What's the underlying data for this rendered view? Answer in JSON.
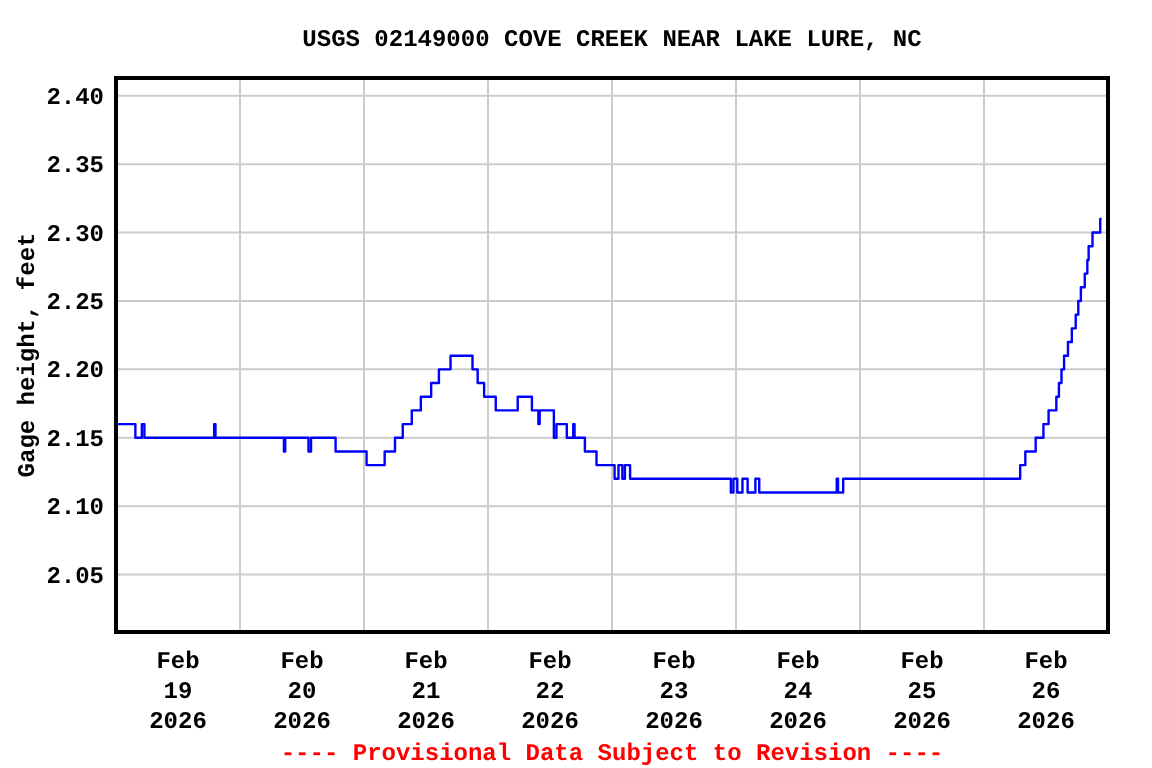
{
  "chart_data": {
    "type": "step",
    "title": "USGS 02149000 COVE CREEK NEAR LAKE LURE, NC",
    "ylabel": "Gage height, feet",
    "annotations": [
      "---- Provisional Data Subject to Revision ----"
    ],
    "x": [
      "2026-02-19T00:00",
      "2026-02-19T03:45",
      "2026-02-19T05:00",
      "2026-02-19T05:30",
      "2026-02-19T19:00",
      "2026-02-19T19:15",
      "2026-02-20T08:30",
      "2026-02-20T08:45",
      "2026-02-20T13:15",
      "2026-02-20T13:45",
      "2026-02-20T18:30",
      "2026-02-21T00:30",
      "2026-02-21T04:00",
      "2026-02-21T06:00",
      "2026-02-21T07:30",
      "2026-02-21T09:15",
      "2026-02-21T11:00",
      "2026-02-21T13:00",
      "2026-02-21T14:30",
      "2026-02-21T16:45",
      "2026-02-21T21:00",
      "2026-02-21T22:00",
      "2026-02-21T23:15",
      "2026-02-22T01:30",
      "2026-02-22T05:45",
      "2026-02-22T08:30",
      "2026-02-22T09:45",
      "2026-02-22T10:00",
      "2026-02-22T12:45",
      "2026-02-22T13:15",
      "2026-02-22T15:15",
      "2026-02-22T16:30",
      "2026-02-22T16:45",
      "2026-02-22T18:45",
      "2026-02-22T21:00",
      "2026-02-23T00:30",
      "2026-02-23T01:15",
      "2026-02-23T02:00",
      "2026-02-23T02:30",
      "2026-02-23T03:30",
      "2026-02-23T23:00",
      "2026-02-23T23:30",
      "2026-02-24T00:15",
      "2026-02-24T01:15",
      "2026-02-24T02:15",
      "2026-02-24T03:45",
      "2026-02-24T04:30",
      "2026-02-24T19:30",
      "2026-02-24T19:45",
      "2026-02-24T20:45",
      "2026-02-26T07:00",
      "2026-02-26T08:00",
      "2026-02-26T10:00",
      "2026-02-26T11:30",
      "2026-02-26T12:30",
      "2026-02-26T14:00",
      "2026-02-26T14:30",
      "2026-02-26T15:00",
      "2026-02-26T15:30",
      "2026-02-26T16:15",
      "2026-02-26T17:00",
      "2026-02-26T17:45",
      "2026-02-26T18:15",
      "2026-02-26T18:45",
      "2026-02-26T19:30",
      "2026-02-26T20:00",
      "2026-02-26T20:15",
      "2026-02-26T21:00",
      "2026-02-26T22:30",
      "2026-02-26T22:45"
    ],
    "series": [
      {
        "color": "#0000ff",
        "values": [
          2.16,
          2.15,
          2.16,
          2.15,
          2.16,
          2.15,
          2.14,
          2.15,
          2.14,
          2.15,
          2.14,
          2.13,
          2.14,
          2.15,
          2.16,
          2.17,
          2.18,
          2.19,
          2.2,
          2.21,
          2.2,
          2.19,
          2.18,
          2.17,
          2.18,
          2.17,
          2.16,
          2.17,
          2.15,
          2.16,
          2.15,
          2.16,
          2.15,
          2.14,
          2.13,
          2.12,
          2.13,
          2.12,
          2.13,
          2.12,
          2.11,
          2.12,
          2.11,
          2.12,
          2.11,
          2.12,
          2.11,
          2.12,
          2.11,
          2.12,
          2.13,
          2.14,
          2.15,
          2.16,
          2.17,
          2.18,
          2.19,
          2.2,
          2.21,
          2.22,
          2.23,
          2.24,
          2.25,
          2.26,
          2.27,
          2.28,
          2.29,
          2.3,
          2.31,
          2.31
        ]
      }
    ],
    "xlim": [
      "2026-02-19T00:00",
      "2026-02-27T00:00"
    ],
    "xticks": [
      {
        "value": "2026-02-19T00:00",
        "label": null
      },
      {
        "value": "2026-02-19T12:00",
        "label": "Feb\n19\n2026"
      },
      {
        "value": "2026-02-20T00:00",
        "label": null
      },
      {
        "value": "2026-02-20T12:00",
        "label": "Feb\n20\n2026"
      },
      {
        "value": "2026-02-21T00:00",
        "label": null
      },
      {
        "value": "2026-02-21T12:00",
        "label": "Feb\n21\n2026"
      },
      {
        "value": "2026-02-22T00:00",
        "label": null
      },
      {
        "value": "2026-02-22T12:00",
        "label": "Feb\n22\n2026"
      },
      {
        "value": "2026-02-23T00:00",
        "label": null
      },
      {
        "value": "2026-02-23T12:00",
        "label": "Feb\n23\n2026"
      },
      {
        "value": "2026-02-24T00:00",
        "label": null
      },
      {
        "value": "2026-02-24T12:00",
        "label": "Feb\n24\n2026"
      },
      {
        "value": "2026-02-25T00:00",
        "label": null
      },
      {
        "value": "2026-02-25T12:00",
        "label": "Feb\n25\n2026"
      },
      {
        "value": "2026-02-26T00:00",
        "label": null
      },
      {
        "value": "2026-02-26T12:00",
        "label": "Feb\n26\n2026"
      },
      {
        "value": "2026-02-27T00:00",
        "label": null
      }
    ],
    "ylim": [
      2.008,
      2.413
    ],
    "yticks": [
      {
        "value": 2.05,
        "label": "2.05"
      },
      {
        "value": 2.1,
        "label": "2.10"
      },
      {
        "value": 2.15,
        "label": "2.15"
      },
      {
        "value": 2.2,
        "label": "2.20"
      },
      {
        "value": 2.25,
        "label": "2.25"
      },
      {
        "value": 2.3,
        "label": "2.30"
      },
      {
        "value": 2.35,
        "label": "2.35"
      },
      {
        "value": 2.4,
        "label": "2.40"
      }
    ],
    "grid": true
  }
}
